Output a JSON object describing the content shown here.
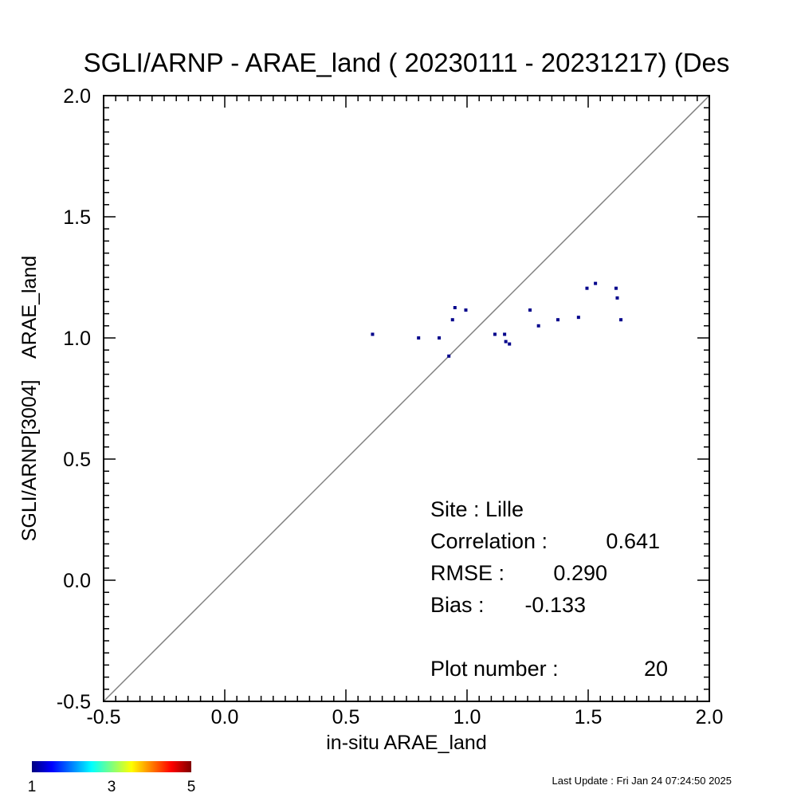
{
  "chart_data": {
    "type": "scatter",
    "title": "SGLI/ARNP - ARAE_land ( 20230111 - 20231217) (Des",
    "xlabel": "in-situ ARAE_land",
    "ylabel": "SGLI/ARNP[3004]    ARAE_land",
    "xlim": [
      -0.5,
      2.0
    ],
    "ylim": [
      -0.5,
      2.0
    ],
    "xticks": [
      "-0.5",
      "0.0",
      "0.5",
      "1.0",
      "1.5",
      "2.0"
    ],
    "yticks": [
      "-0.5",
      "0.0",
      "0.5",
      "1.0",
      "1.5",
      "2.0"
    ],
    "grid": false,
    "reference_line": "1:1",
    "point_color": "#00008b",
    "points": [
      {
        "x": 0.61,
        "y": 1.015
      },
      {
        "x": 0.8,
        "y": 1.0
      },
      {
        "x": 0.885,
        "y": 1.0
      },
      {
        "x": 0.925,
        "y": 0.925
      },
      {
        "x": 0.94,
        "y": 1.075
      },
      {
        "x": 0.95,
        "y": 1.125
      },
      {
        "x": 0.995,
        "y": 1.115
      },
      {
        "x": 1.115,
        "y": 1.015
      },
      {
        "x": 1.155,
        "y": 1.015
      },
      {
        "x": 1.16,
        "y": 0.985
      },
      {
        "x": 1.175,
        "y": 0.975
      },
      {
        "x": 1.26,
        "y": 1.115
      },
      {
        "x": 1.295,
        "y": 1.05
      },
      {
        "x": 1.375,
        "y": 1.075
      },
      {
        "x": 1.46,
        "y": 1.085
      },
      {
        "x": 1.495,
        "y": 1.205
      },
      {
        "x": 1.53,
        "y": 1.225
      },
      {
        "x": 1.615,
        "y": 1.205
      },
      {
        "x": 1.62,
        "y": 1.165
      },
      {
        "x": 1.635,
        "y": 1.075
      }
    ],
    "stats": [
      {
        "label": "Site : Lille",
        "value": ""
      },
      {
        "label": "Correlation :",
        "value": "0.641"
      },
      {
        "label": "RMSE :",
        "value": "0.290"
      },
      {
        "label": "Bias :",
        "value": "-0.133"
      },
      {
        "label": "Plot number :",
        "value": "20"
      }
    ],
    "colorbar": {
      "min": 1,
      "max": 5,
      "tick_labels": [
        "1",
        "3",
        "5"
      ],
      "colors": [
        "#00007f",
        "#0000ff",
        "#007fff",
        "#00ffff",
        "#7fff7f",
        "#ffff00",
        "#ff7f00",
        "#ff0000",
        "#7f0000"
      ]
    }
  },
  "footer": {
    "last_update": "Last Update : Fri Jan 24 07:24:50 2025"
  }
}
